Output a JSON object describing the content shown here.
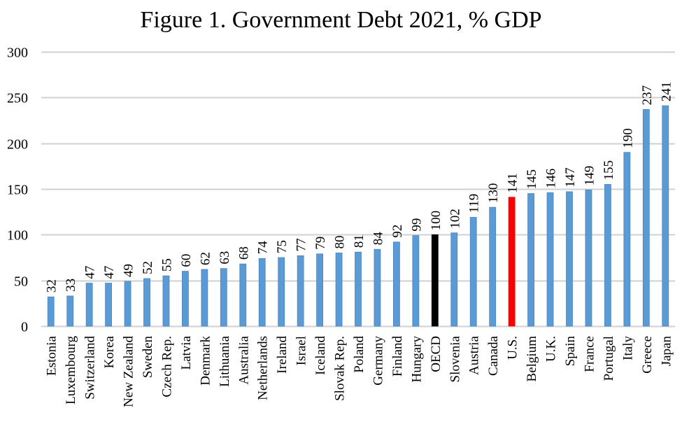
{
  "chart_data": {
    "type": "bar",
    "title": "Figure 1. Government Debt 2021, % GDP",
    "xlabel": "",
    "ylabel": "",
    "ylim": [
      0,
      300
    ],
    "yticks": [
      0,
      50,
      100,
      150,
      200,
      250,
      300
    ],
    "grid": true,
    "legend": "none",
    "categories": [
      "Estonia",
      "Luxembourg",
      "Switzerland",
      "Korea",
      "New Zealand",
      "Sweden",
      "Czech Rep.",
      "Latvia",
      "Denmark",
      "Lithuania",
      "Australia",
      "Netherlands",
      "Ireland",
      "Israel",
      "Iceland",
      "Slovak Rep.",
      "Poland",
      "Germany",
      "Finland",
      "Hungary",
      "OECD",
      "Slovenia",
      "Austria",
      "Canada",
      "U.S.",
      "Belgium",
      "U.K.",
      "Spain",
      "France",
      "Portugal",
      "Italy",
      "Greece",
      "Japan"
    ],
    "values": [
      32,
      33,
      47,
      47,
      49,
      52,
      55,
      60,
      62,
      63,
      68,
      74,
      75,
      77,
      79,
      80,
      81,
      84,
      92,
      99,
      100,
      102,
      119,
      130,
      141,
      145,
      146,
      147,
      149,
      155,
      190,
      237,
      241
    ],
    "colors": {
      "default": "#5B9BD5",
      "highlight": {
        "OECD": "#000000",
        "U.S.": "#FF0000"
      },
      "gridline": "#D0D0D0"
    }
  }
}
